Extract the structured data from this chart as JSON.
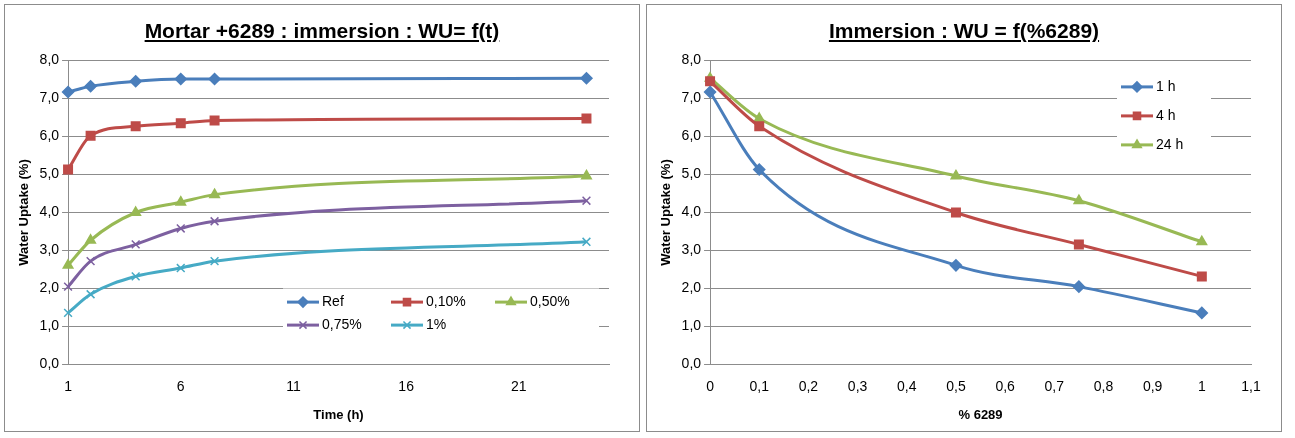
{
  "chart_data": [
    {
      "type": "line",
      "title": "Mortar +6289 : immersion : WU= f(t)",
      "xlabel": "Time (h)",
      "ylabel": "Water Uptake (%)",
      "x": [
        1,
        2,
        4,
        6,
        7.5,
        24
      ],
      "series": [
        {
          "name": "Ref",
          "color": "#4a7ebb",
          "marker": "diamond",
          "values": [
            7.17,
            7.32,
            7.45,
            7.51,
            7.51,
            7.53
          ]
        },
        {
          "name": "0,10%",
          "color": "#be4b48",
          "marker": "square",
          "values": [
            5.13,
            6.02,
            6.27,
            6.35,
            6.42,
            6.47
          ]
        },
        {
          "name": "0,50%",
          "color": "#98b954",
          "marker": "triangle",
          "values": [
            2.61,
            3.27,
            4.0,
            4.27,
            4.47,
            4.96
          ]
        },
        {
          "name": "0,75%",
          "color": "#7d60a0",
          "marker": "cross",
          "values": [
            2.05,
            2.72,
            3.16,
            3.58,
            3.77,
            4.31
          ]
        },
        {
          "name": "1%",
          "color": "#46aac5",
          "marker": "cross",
          "values": [
            1.36,
            1.85,
            2.32,
            2.54,
            2.72,
            3.23
          ]
        }
      ],
      "xlim": [
        1,
        25
      ],
      "xticks": [
        1,
        6,
        11,
        16,
        21
      ],
      "ylim": [
        0,
        8
      ],
      "yticks": [
        {
          "value": 0,
          "label": "0,0"
        },
        {
          "value": 1,
          "label": "1,0"
        },
        {
          "value": 2,
          "label": "2,0"
        },
        {
          "value": 3,
          "label": "3,0"
        },
        {
          "value": 4,
          "label": "4,0"
        },
        {
          "value": 5,
          "label": "5,0"
        },
        {
          "value": 6,
          "label": "6,0"
        },
        {
          "value": 7,
          "label": "7,0"
        },
        {
          "value": 8,
          "label": "8,0"
        }
      ],
      "grid": "y",
      "legend": "bottom right",
      "line_style": "solid"
    },
    {
      "type": "line",
      "title": "Immersion : WU = f(%6289)",
      "xlabel": "% 6289",
      "ylabel": "Water Uptake (%)",
      "x": [
        0,
        0.1,
        0.5,
        0.75,
        1
      ],
      "series": [
        {
          "name": "1 h",
          "color": "#4a7ebb",
          "marker": "diamond",
          "values": [
            7.17,
            5.13,
            2.61,
            2.05,
            1.36
          ]
        },
        {
          "name": "4 h",
          "color": "#be4b48",
          "marker": "square",
          "values": [
            7.45,
            6.27,
            4.0,
            3.16,
            2.32
          ]
        },
        {
          "name": "24 h",
          "color": "#98b954",
          "marker": "triangle",
          "values": [
            7.53,
            6.47,
            4.96,
            4.31,
            3.23
          ]
        }
      ],
      "xlim": [
        0,
        1.1
      ],
      "xticks": [
        0,
        {
          "value": 0.1,
          "label": "0,1"
        },
        {
          "value": 0.2,
          "label": "0,2"
        },
        {
          "value": 0.3,
          "label": "0,3"
        },
        {
          "value": 0.4,
          "label": "0,4"
        },
        {
          "value": 0.5,
          "label": "0,5"
        },
        {
          "value": 0.6,
          "label": "0,6"
        },
        {
          "value": 0.7,
          "label": "0,7"
        },
        {
          "value": 0.8,
          "label": "0,8"
        },
        {
          "value": 0.9,
          "label": "0,9"
        },
        1,
        {
          "value": 1.1,
          "label": "1,1"
        }
      ],
      "ylim": [
        0,
        8
      ],
      "yticks": [
        {
          "value": 0,
          "label": "0,0"
        },
        {
          "value": 1,
          "label": "1,0"
        },
        {
          "value": 2,
          "label": "2,0"
        },
        {
          "value": 3,
          "label": "3,0"
        },
        {
          "value": 4,
          "label": "4,0"
        },
        {
          "value": 5,
          "label": "5,0"
        },
        {
          "value": 6,
          "label": "6,0"
        },
        {
          "value": 7,
          "label": "7,0"
        },
        {
          "value": 8,
          "label": "8,0"
        }
      ],
      "grid": "y",
      "legend": "top right",
      "line_style": "solid"
    }
  ]
}
